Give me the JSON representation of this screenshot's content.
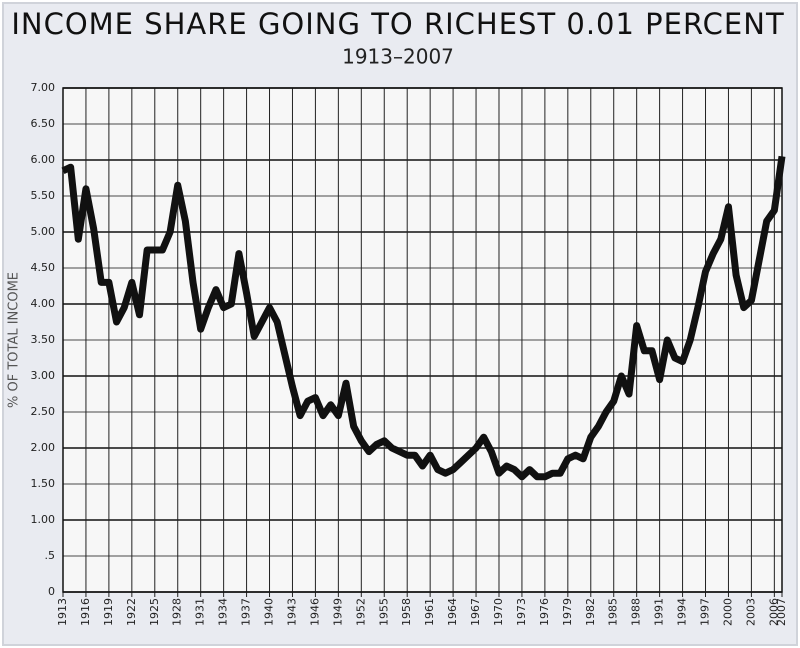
{
  "chart_data": {
    "type": "line",
    "title": "INCOME SHARE GOING TO RICHEST 0.01 PERCENT",
    "subtitle": "1913–2007",
    "y_label": "% OF TOTAL INCOME",
    "color": "#111111",
    "grid": true,
    "x": [
      1913,
      1914,
      1915,
      1916,
      1917,
      1918,
      1919,
      1920,
      1921,
      1922,
      1923,
      1924,
      1925,
      1926,
      1927,
      1928,
      1929,
      1930,
      1931,
      1932,
      1933,
      1934,
      1935,
      1936,
      1937,
      1938,
      1939,
      1940,
      1941,
      1942,
      1943,
      1944,
      1945,
      1946,
      1947,
      1948,
      1949,
      1950,
      1951,
      1952,
      1953,
      1954,
      1955,
      1956,
      1957,
      1958,
      1959,
      1960,
      1961,
      1962,
      1963,
      1964,
      1965,
      1966,
      1967,
      1968,
      1969,
      1970,
      1971,
      1972,
      1973,
      1974,
      1975,
      1976,
      1977,
      1978,
      1979,
      1980,
      1981,
      1982,
      1983,
      1984,
      1985,
      1986,
      1987,
      1988,
      1989,
      1990,
      1991,
      1992,
      1993,
      1994,
      1995,
      1996,
      1997,
      1998,
      1999,
      2000,
      2001,
      2002,
      2003,
      2004,
      2005,
      2006,
      2007
    ],
    "values": [
      5.85,
      5.9,
      4.9,
      5.6,
      5.05,
      4.3,
      4.3,
      3.75,
      3.95,
      4.3,
      3.85,
      4.75,
      4.75,
      4.75,
      5.0,
      5.65,
      5.15,
      4.3,
      3.65,
      3.95,
      4.2,
      3.95,
      4.0,
      4.7,
      4.15,
      3.55,
      3.75,
      3.95,
      3.75,
      3.3,
      2.85,
      2.45,
      2.65,
      2.7,
      2.45,
      2.6,
      2.45,
      2.9,
      2.3,
      2.1,
      1.95,
      2.05,
      2.1,
      2.0,
      1.95,
      1.9,
      1.9,
      1.75,
      1.9,
      1.7,
      1.65,
      1.7,
      1.8,
      1.9,
      2.0,
      2.15,
      1.95,
      1.65,
      1.75,
      1.7,
      1.6,
      1.7,
      1.6,
      1.6,
      1.65,
      1.65,
      1.85,
      1.9,
      1.85,
      2.15,
      2.3,
      2.5,
      2.65,
      3.0,
      2.75,
      3.7,
      3.35,
      3.35,
      2.95,
      3.5,
      3.25,
      3.2,
      3.5,
      3.95,
      4.45,
      4.7,
      4.9,
      5.35,
      4.4,
      3.95,
      4.05,
      4.6,
      5.15,
      5.3,
      6.05
    ],
    "xlim": [
      1913,
      2007
    ],
    "xticks": [
      1913,
      1916,
      1919,
      1922,
      1925,
      1928,
      1931,
      1934,
      1937,
      1940,
      1943,
      1946,
      1949,
      1952,
      1955,
      1958,
      1961,
      1964,
      1967,
      1970,
      1973,
      1976,
      1979,
      1982,
      1985,
      1988,
      1991,
      1994,
      1997,
      2000,
      2003,
      2006,
      2007
    ],
    "ylim": [
      0,
      7
    ],
    "yticks": [
      0,
      {
        "value": 0.5,
        "label": ".5"
      },
      {
        "value": 1,
        "label": "1.00"
      },
      {
        "value": 1.5,
        "label": "1.50"
      },
      {
        "value": 2,
        "label": "2.00"
      },
      {
        "value": 2.5,
        "label": "2.50"
      },
      {
        "value": 3,
        "label": "3.00"
      },
      {
        "value": 3.5,
        "label": "3.50"
      },
      {
        "value": 4,
        "label": "4.00"
      },
      {
        "value": 4.5,
        "label": "4.50"
      },
      {
        "value": 5,
        "label": "5.00"
      },
      {
        "value": 5.5,
        "label": "5.50"
      },
      {
        "value": 6,
        "label": "6.00"
      },
      {
        "value": 6.5,
        "label": "6.50"
      },
      {
        "value": 7,
        "label": "7.00"
      }
    ]
  }
}
